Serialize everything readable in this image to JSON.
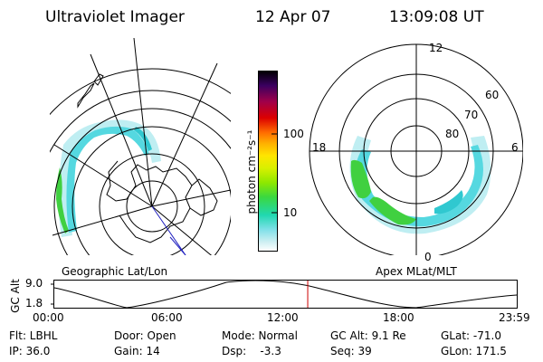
{
  "header": {
    "instrument": "Ultraviolet Imager",
    "date": "12 Apr 07",
    "time": "13:09:08 UT"
  },
  "colorbar": {
    "label": "photon cm⁻²s⁻¹",
    "ticks": [
      "100",
      "10"
    ],
    "colors": [
      "#000000",
      "#3a0060",
      "#a0004a",
      "#dc0000",
      "#ff6a00",
      "#ffae00",
      "#ffe500",
      "#d8f000",
      "#8ee800",
      "#3ad840",
      "#20d8b0",
      "#7fe0e8",
      "#cfeff2",
      "#ffffff"
    ]
  },
  "left_panel": {
    "label": "Geographic Lat/Lon"
  },
  "right_panel": {
    "label": "Apex MLat/MLT",
    "mlt_labels": {
      "top": "12",
      "left": "18",
      "right": "6",
      "bottom": "0"
    },
    "lat_labels": [
      "60",
      "70",
      "80"
    ]
  },
  "gc_alt_plot": {
    "axis_label": "GC Alt",
    "y_ticks": [
      "9.0",
      "1.8"
    ],
    "x_ticks": [
      "00:00",
      "06:00",
      "12:00",
      "18:00",
      "23:59"
    ],
    "current_time_marker": "13:09:08",
    "marker_color": "#cc0000"
  },
  "info": {
    "filter": "Flt: LBHL",
    "ip": "IP: 36.0",
    "door": "Door: Open",
    "gain": "Gain: 14",
    "mode": "Mode: Normal",
    "dsp": "Dsp:    -3.3",
    "gc_alt": "GC Alt: 9.1 Re",
    "seq": "Seq: 39",
    "glat": "GLat: -71.0",
    "glon": "GLon: 171.5"
  }
}
